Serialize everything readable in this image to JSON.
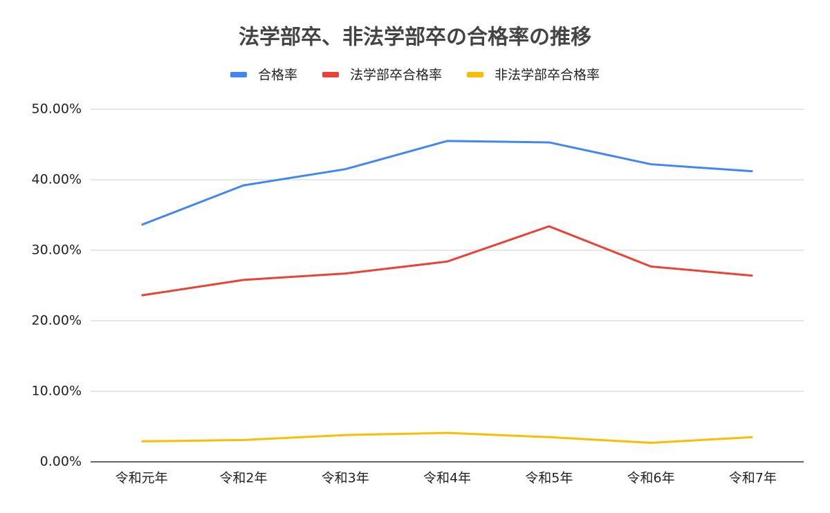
{
  "chart_data": {
    "type": "line",
    "title": "法学部卒、非法学部卒の合格率の推移",
    "categories": [
      "令和元年",
      "令和2年",
      "令和3年",
      "令和4年",
      "令和5年",
      "令和6年",
      "令和7年"
    ],
    "series": [
      {
        "name": "合格率",
        "color": "#4285f4",
        "values": [
          33.6,
          39.2,
          41.5,
          45.5,
          45.3,
          42.2,
          41.2
        ]
      },
      {
        "name": "法学部卒合格率",
        "color": "#ea4335",
        "values": [
          23.6,
          25.8,
          26.7,
          28.4,
          33.4,
          27.7,
          26.4
        ]
      },
      {
        "name": "非法学部卒合格率",
        "color": "#fbbc04",
        "values": [
          2.9,
          3.1,
          3.8,
          4.1,
          3.5,
          2.7,
          3.5
        ]
      }
    ],
    "ylim": [
      0,
      50
    ],
    "yticks": [
      {
        "value": 0,
        "label": "0.00%"
      },
      {
        "value": 10,
        "label": "10.00%"
      },
      {
        "value": 20,
        "label": "20.00%"
      },
      {
        "value": 30,
        "label": "30.00%"
      },
      {
        "value": 40,
        "label": "40.00%"
      },
      {
        "value": 50,
        "label": "50.00%"
      }
    ],
    "grid": true,
    "legend": "top"
  }
}
